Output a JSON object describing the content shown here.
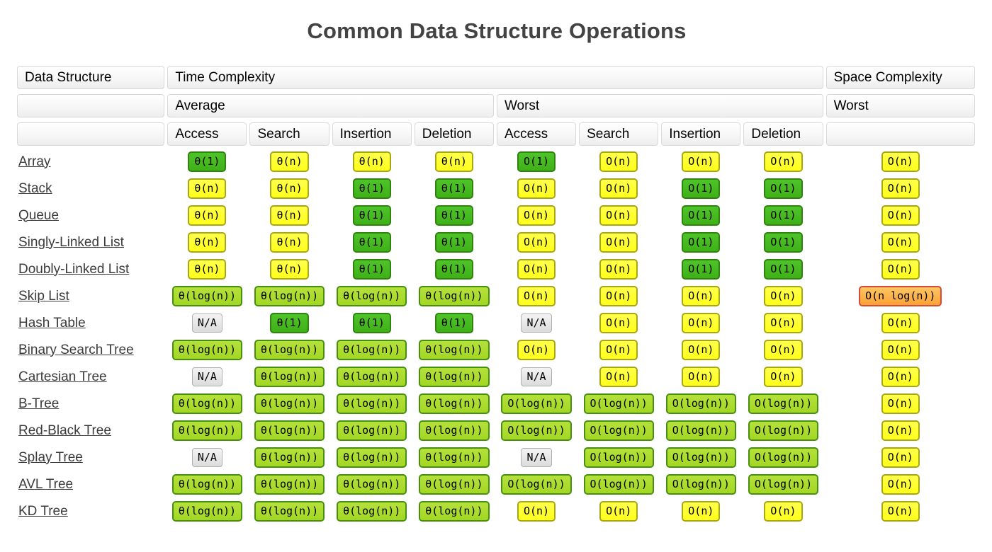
{
  "page": {
    "title": "Common Data Structure Operations"
  },
  "legend_colors": {
    "green_o1": "#3eb117",
    "yellow_on": "#ffff1a",
    "yellowgreen_ologn": "#a3d723",
    "orange_onlogn": "#fba235",
    "gray_na": "#e0e0e0",
    "title_text": "#434343",
    "link_text": "#3b3b3b",
    "header_border": "#d9d9d9"
  },
  "table": {
    "header": {
      "data_structure": "Data Structure",
      "time_complexity": "Time Complexity",
      "space_complexity": "Space Complexity",
      "average": "Average",
      "worst_time": "Worst",
      "worst_space": "Worst",
      "op_labels": [
        "Access",
        "Search",
        "Insertion",
        "Deletion",
        "Access",
        "Search",
        "Insertion",
        "Deletion"
      ]
    },
    "rows": [
      {
        "name": "Array",
        "cells": [
          {
            "text": "θ(1)",
            "color": "green"
          },
          {
            "text": "θ(n)",
            "color": "yellow"
          },
          {
            "text": "θ(n)",
            "color": "yellow"
          },
          {
            "text": "θ(n)",
            "color": "yellow"
          },
          {
            "text": "O(1)",
            "color": "green"
          },
          {
            "text": "O(n)",
            "color": "yellow"
          },
          {
            "text": "O(n)",
            "color": "yellow"
          },
          {
            "text": "O(n)",
            "color": "yellow"
          },
          {
            "text": "O(n)",
            "color": "yellow"
          }
        ]
      },
      {
        "name": "Stack",
        "cells": [
          {
            "text": "θ(n)",
            "color": "yellow"
          },
          {
            "text": "θ(n)",
            "color": "yellow"
          },
          {
            "text": "θ(1)",
            "color": "green"
          },
          {
            "text": "θ(1)",
            "color": "green"
          },
          {
            "text": "O(n)",
            "color": "yellow"
          },
          {
            "text": "O(n)",
            "color": "yellow"
          },
          {
            "text": "O(1)",
            "color": "green"
          },
          {
            "text": "O(1)",
            "color": "green"
          },
          {
            "text": "O(n)",
            "color": "yellow"
          }
        ]
      },
      {
        "name": "Queue",
        "cells": [
          {
            "text": "θ(n)",
            "color": "yellow"
          },
          {
            "text": "θ(n)",
            "color": "yellow"
          },
          {
            "text": "θ(1)",
            "color": "green"
          },
          {
            "text": "θ(1)",
            "color": "green"
          },
          {
            "text": "O(n)",
            "color": "yellow"
          },
          {
            "text": "O(n)",
            "color": "yellow"
          },
          {
            "text": "O(1)",
            "color": "green"
          },
          {
            "text": "O(1)",
            "color": "green"
          },
          {
            "text": "O(n)",
            "color": "yellow"
          }
        ]
      },
      {
        "name": "Singly-Linked List",
        "cells": [
          {
            "text": "θ(n)",
            "color": "yellow"
          },
          {
            "text": "θ(n)",
            "color": "yellow"
          },
          {
            "text": "θ(1)",
            "color": "green"
          },
          {
            "text": "θ(1)",
            "color": "green"
          },
          {
            "text": "O(n)",
            "color": "yellow"
          },
          {
            "text": "O(n)",
            "color": "yellow"
          },
          {
            "text": "O(1)",
            "color": "green"
          },
          {
            "text": "O(1)",
            "color": "green"
          },
          {
            "text": "O(n)",
            "color": "yellow"
          }
        ]
      },
      {
        "name": "Doubly-Linked List",
        "cells": [
          {
            "text": "θ(n)",
            "color": "yellow"
          },
          {
            "text": "θ(n)",
            "color": "yellow"
          },
          {
            "text": "θ(1)",
            "color": "green"
          },
          {
            "text": "θ(1)",
            "color": "green"
          },
          {
            "text": "O(n)",
            "color": "yellow"
          },
          {
            "text": "O(n)",
            "color": "yellow"
          },
          {
            "text": "O(1)",
            "color": "green"
          },
          {
            "text": "O(1)",
            "color": "green"
          },
          {
            "text": "O(n)",
            "color": "yellow"
          }
        ]
      },
      {
        "name": "Skip List",
        "cells": [
          {
            "text": "θ(log(n))",
            "color": "yellowgreen"
          },
          {
            "text": "θ(log(n))",
            "color": "yellowgreen"
          },
          {
            "text": "θ(log(n))",
            "color": "yellowgreen"
          },
          {
            "text": "θ(log(n))",
            "color": "yellowgreen"
          },
          {
            "text": "O(n)",
            "color": "yellow"
          },
          {
            "text": "O(n)",
            "color": "yellow"
          },
          {
            "text": "O(n)",
            "color": "yellow"
          },
          {
            "text": "O(n)",
            "color": "yellow"
          },
          {
            "text": "O(n log(n))",
            "color": "orange"
          }
        ]
      },
      {
        "name": "Hash Table",
        "cells": [
          {
            "text": "N/A",
            "color": "gray"
          },
          {
            "text": "θ(1)",
            "color": "green"
          },
          {
            "text": "θ(1)",
            "color": "green"
          },
          {
            "text": "θ(1)",
            "color": "green"
          },
          {
            "text": "N/A",
            "color": "gray"
          },
          {
            "text": "O(n)",
            "color": "yellow"
          },
          {
            "text": "O(n)",
            "color": "yellow"
          },
          {
            "text": "O(n)",
            "color": "yellow"
          },
          {
            "text": "O(n)",
            "color": "yellow"
          }
        ]
      },
      {
        "name": "Binary Search Tree",
        "cells": [
          {
            "text": "θ(log(n))",
            "color": "yellowgreen"
          },
          {
            "text": "θ(log(n))",
            "color": "yellowgreen"
          },
          {
            "text": "θ(log(n))",
            "color": "yellowgreen"
          },
          {
            "text": "θ(log(n))",
            "color": "yellowgreen"
          },
          {
            "text": "O(n)",
            "color": "yellow"
          },
          {
            "text": "O(n)",
            "color": "yellow"
          },
          {
            "text": "O(n)",
            "color": "yellow"
          },
          {
            "text": "O(n)",
            "color": "yellow"
          },
          {
            "text": "O(n)",
            "color": "yellow"
          }
        ]
      },
      {
        "name": "Cartesian Tree",
        "cells": [
          {
            "text": "N/A",
            "color": "gray"
          },
          {
            "text": "θ(log(n))",
            "color": "yellowgreen"
          },
          {
            "text": "θ(log(n))",
            "color": "yellowgreen"
          },
          {
            "text": "θ(log(n))",
            "color": "yellowgreen"
          },
          {
            "text": "N/A",
            "color": "gray"
          },
          {
            "text": "O(n)",
            "color": "yellow"
          },
          {
            "text": "O(n)",
            "color": "yellow"
          },
          {
            "text": "O(n)",
            "color": "yellow"
          },
          {
            "text": "O(n)",
            "color": "yellow"
          }
        ]
      },
      {
        "name": "B-Tree",
        "cells": [
          {
            "text": "θ(log(n))",
            "color": "yellowgreen"
          },
          {
            "text": "θ(log(n))",
            "color": "yellowgreen"
          },
          {
            "text": "θ(log(n))",
            "color": "yellowgreen"
          },
          {
            "text": "θ(log(n))",
            "color": "yellowgreen"
          },
          {
            "text": "O(log(n))",
            "color": "yellowgreen"
          },
          {
            "text": "O(log(n))",
            "color": "yellowgreen"
          },
          {
            "text": "O(log(n))",
            "color": "yellowgreen"
          },
          {
            "text": "O(log(n))",
            "color": "yellowgreen"
          },
          {
            "text": "O(n)",
            "color": "yellow"
          }
        ]
      },
      {
        "name": "Red-Black Tree",
        "cells": [
          {
            "text": "θ(log(n))",
            "color": "yellowgreen"
          },
          {
            "text": "θ(log(n))",
            "color": "yellowgreen"
          },
          {
            "text": "θ(log(n))",
            "color": "yellowgreen"
          },
          {
            "text": "θ(log(n))",
            "color": "yellowgreen"
          },
          {
            "text": "O(log(n))",
            "color": "yellowgreen"
          },
          {
            "text": "O(log(n))",
            "color": "yellowgreen"
          },
          {
            "text": "O(log(n))",
            "color": "yellowgreen"
          },
          {
            "text": "O(log(n))",
            "color": "yellowgreen"
          },
          {
            "text": "O(n)",
            "color": "yellow"
          }
        ]
      },
      {
        "name": "Splay Tree",
        "cells": [
          {
            "text": "N/A",
            "color": "gray"
          },
          {
            "text": "θ(log(n))",
            "color": "yellowgreen"
          },
          {
            "text": "θ(log(n))",
            "color": "yellowgreen"
          },
          {
            "text": "θ(log(n))",
            "color": "yellowgreen"
          },
          {
            "text": "N/A",
            "color": "gray"
          },
          {
            "text": "O(log(n))",
            "color": "yellowgreen"
          },
          {
            "text": "O(log(n))",
            "color": "yellowgreen"
          },
          {
            "text": "O(log(n))",
            "color": "yellowgreen"
          },
          {
            "text": "O(n)",
            "color": "yellow"
          }
        ]
      },
      {
        "name": "AVL Tree",
        "cells": [
          {
            "text": "θ(log(n))",
            "color": "yellowgreen"
          },
          {
            "text": "θ(log(n))",
            "color": "yellowgreen"
          },
          {
            "text": "θ(log(n))",
            "color": "yellowgreen"
          },
          {
            "text": "θ(log(n))",
            "color": "yellowgreen"
          },
          {
            "text": "O(log(n))",
            "color": "yellowgreen"
          },
          {
            "text": "O(log(n))",
            "color": "yellowgreen"
          },
          {
            "text": "O(log(n))",
            "color": "yellowgreen"
          },
          {
            "text": "O(log(n))",
            "color": "yellowgreen"
          },
          {
            "text": "O(n)",
            "color": "yellow"
          }
        ]
      },
      {
        "name": "KD Tree",
        "cells": [
          {
            "text": "θ(log(n))",
            "color": "yellowgreen"
          },
          {
            "text": "θ(log(n))",
            "color": "yellowgreen"
          },
          {
            "text": "θ(log(n))",
            "color": "yellowgreen"
          },
          {
            "text": "θ(log(n))",
            "color": "yellowgreen"
          },
          {
            "text": "O(n)",
            "color": "yellow"
          },
          {
            "text": "O(n)",
            "color": "yellow"
          },
          {
            "text": "O(n)",
            "color": "yellow"
          },
          {
            "text": "O(n)",
            "color": "yellow"
          },
          {
            "text": "O(n)",
            "color": "yellow"
          }
        ]
      }
    ]
  }
}
